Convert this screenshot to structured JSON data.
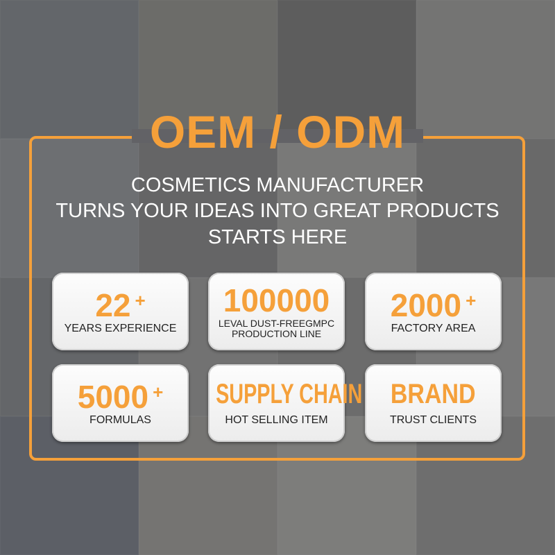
{
  "title": "OEM / ODM",
  "subtitle": [
    "COSMETICS MANUFACTURER",
    "TURNS YOUR IDEAS INTO GREAT PRODUCTS",
    "STARTS HERE"
  ],
  "accent_color": "#f5a03a",
  "cards": [
    {
      "value": "22",
      "suffix": "+",
      "label": "YEARS EXPERIENCE"
    },
    {
      "value": "100000",
      "suffix": "",
      "label_lines": [
        "LEVAL DUST-FREEGMPC",
        "PRODUCTION LINE"
      ]
    },
    {
      "value": "2000",
      "suffix": "+",
      "label": "FACTORY AREA"
    },
    {
      "value": "5000",
      "suffix": "+",
      "label": "FORMULAS"
    },
    {
      "value": "SUPPLY CHAIN",
      "suffix": "",
      "label": "HOT SELLING ITEM"
    },
    {
      "value": "BRAND",
      "suffix": "",
      "label": "TRUST CLIENTS"
    }
  ]
}
